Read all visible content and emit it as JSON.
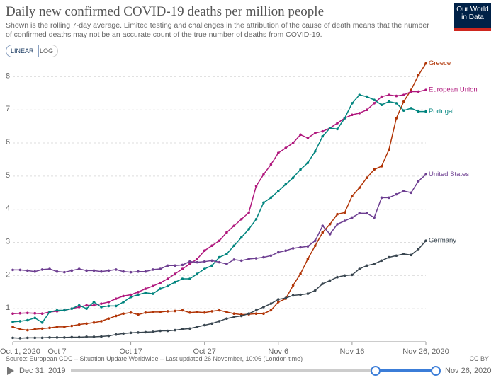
{
  "chart_data": {
    "type": "line",
    "title": "Daily new confirmed COVID-19 deaths per million people",
    "subtitle": "Shown is the rolling 7-day average. Limited testing and challenges in the attribution of the cause of death means that the number of confirmed deaths may not be an accurate count of the true number of deaths from COVID-19.",
    "source": "Source: European CDC – Situation Update Worldwide – Last updated 26 November, 10:06 (London time)",
    "x": [
      "2020-10-01",
      "2020-10-02",
      "2020-10-03",
      "2020-10-04",
      "2020-10-05",
      "2020-10-06",
      "2020-10-07",
      "2020-10-08",
      "2020-10-09",
      "2020-10-10",
      "2020-10-11",
      "2020-10-12",
      "2020-10-13",
      "2020-10-14",
      "2020-10-15",
      "2020-10-16",
      "2020-10-17",
      "2020-10-18",
      "2020-10-19",
      "2020-10-20",
      "2020-10-21",
      "2020-10-22",
      "2020-10-23",
      "2020-10-24",
      "2020-10-25",
      "2020-10-26",
      "2020-10-27",
      "2020-10-28",
      "2020-10-29",
      "2020-10-30",
      "2020-10-31",
      "2020-11-01",
      "2020-11-02",
      "2020-11-03",
      "2020-11-04",
      "2020-11-05",
      "2020-11-06",
      "2020-11-07",
      "2020-11-08",
      "2020-11-09",
      "2020-11-10",
      "2020-11-11",
      "2020-11-12",
      "2020-11-13",
      "2020-11-14",
      "2020-11-15",
      "2020-11-16",
      "2020-11-17",
      "2020-11-18",
      "2020-11-19",
      "2020-11-20",
      "2020-11-21",
      "2020-11-22",
      "2020-11-23",
      "2020-11-24",
      "2020-11-25",
      "2020-11-26"
    ],
    "xticks": [
      {
        "value": "2020-10-01",
        "label": "Oct 1, 2020"
      },
      {
        "value": "2020-10-07",
        "label": "Oct 7"
      },
      {
        "value": "2020-10-17",
        "label": "Oct 17"
      },
      {
        "value": "2020-10-27",
        "label": "Oct 27"
      },
      {
        "value": "2020-11-06",
        "label": "Nov 6"
      },
      {
        "value": "2020-11-16",
        "label": "Nov 16"
      },
      {
        "value": "2020-11-26",
        "label": "Nov 26, 2020"
      }
    ],
    "ylim": [
      0,
      8.5
    ],
    "yticks": [
      1,
      2,
      3,
      4,
      5,
      6,
      7,
      8
    ],
    "grid": true,
    "series": [
      {
        "name": "Greece",
        "color": "#b13507",
        "values": [
          0.45,
          0.38,
          0.35,
          0.38,
          0.4,
          0.42,
          0.45,
          0.45,
          0.48,
          0.52,
          0.55,
          0.58,
          0.62,
          0.7,
          0.78,
          0.85,
          0.88,
          0.82,
          0.88,
          0.9,
          0.9,
          0.92,
          0.93,
          0.95,
          0.88,
          0.9,
          0.88,
          0.92,
          0.95,
          0.9,
          0.85,
          0.82,
          0.83,
          0.85,
          0.85,
          0.95,
          1.2,
          1.3,
          1.7,
          2.05,
          2.5,
          2.9,
          3.3,
          3.55,
          3.85,
          3.9,
          4.4,
          4.65,
          4.95,
          5.2,
          5.3,
          5.8,
          6.75,
          7.25,
          7.6,
          8.05,
          8.4
        ]
      },
      {
        "name": "European Union",
        "color": "#b0187d",
        "values": [
          0.85,
          0.86,
          0.87,
          0.86,
          0.85,
          0.9,
          0.92,
          0.95,
          1.0,
          1.05,
          1.1,
          1.1,
          1.15,
          1.2,
          1.3,
          1.38,
          1.42,
          1.5,
          1.6,
          1.68,
          1.78,
          1.9,
          2.05,
          2.2,
          2.35,
          2.5,
          2.75,
          2.9,
          3.05,
          3.3,
          3.5,
          3.7,
          3.9,
          4.7,
          5.05,
          5.35,
          5.7,
          5.85,
          6.0,
          6.25,
          6.15,
          6.3,
          6.35,
          6.45,
          6.6,
          6.75,
          6.85,
          6.9,
          7.0,
          7.2,
          7.4,
          7.45,
          7.42,
          7.45,
          7.55,
          7.55,
          7.6
        ]
      },
      {
        "name": "Portugal",
        "color": "#00847e",
        "values": [
          0.6,
          0.62,
          0.65,
          0.72,
          0.58,
          0.9,
          0.95,
          0.95,
          1.0,
          1.1,
          1.0,
          1.2,
          1.05,
          1.08,
          1.08,
          1.2,
          1.35,
          1.42,
          1.48,
          1.45,
          1.6,
          1.68,
          1.8,
          1.9,
          1.9,
          2.05,
          2.2,
          2.3,
          2.55,
          2.65,
          2.9,
          3.15,
          3.4,
          3.7,
          4.2,
          4.35,
          4.55,
          4.75,
          4.95,
          5.2,
          5.4,
          5.75,
          6.2,
          6.45,
          6.42,
          6.75,
          7.2,
          7.45,
          7.4,
          7.3,
          7.15,
          7.25,
          7.2,
          6.98,
          7.05,
          6.95,
          6.95
        ]
      },
      {
        "name": "United States",
        "color": "#6d3e91",
        "values": [
          2.17,
          2.17,
          2.15,
          2.12,
          2.18,
          2.2,
          2.12,
          2.1,
          2.15,
          2.2,
          2.15,
          2.15,
          2.12,
          2.15,
          2.18,
          2.12,
          2.1,
          2.12,
          2.12,
          2.18,
          2.2,
          2.3,
          2.3,
          2.32,
          2.42,
          2.4,
          2.42,
          2.45,
          2.4,
          2.35,
          2.48,
          2.45,
          2.5,
          2.52,
          2.55,
          2.6,
          2.7,
          2.75,
          2.82,
          2.85,
          2.88,
          3.05,
          3.5,
          3.25,
          3.55,
          3.65,
          3.75,
          3.88,
          3.88,
          3.75,
          4.35,
          4.35,
          4.45,
          4.55,
          4.5,
          4.85,
          5.05
        ]
      },
      {
        "name": "Germany",
        "color": "#38454f",
        "values": [
          0.12,
          0.11,
          0.12,
          0.12,
          0.12,
          0.13,
          0.13,
          0.13,
          0.14,
          0.14,
          0.15,
          0.15,
          0.16,
          0.18,
          0.22,
          0.25,
          0.27,
          0.28,
          0.29,
          0.3,
          0.33,
          0.33,
          0.35,
          0.38,
          0.4,
          0.45,
          0.5,
          0.55,
          0.62,
          0.7,
          0.75,
          0.78,
          0.85,
          0.95,
          1.05,
          1.15,
          1.28,
          1.32,
          1.4,
          1.42,
          1.45,
          1.55,
          1.75,
          1.85,
          1.95,
          2.0,
          2.02,
          2.2,
          2.3,
          2.35,
          2.45,
          2.55,
          2.6,
          2.65,
          2.62,
          2.8,
          3.05
        ]
      }
    ]
  },
  "logo": "Our World in Data",
  "scale_buttons": [
    "LINEAR",
    "LOG"
  ],
  "license": "CC BY",
  "timeline": {
    "start": "Dec 31, 2019",
    "end": "Nov 26, 2020"
  }
}
